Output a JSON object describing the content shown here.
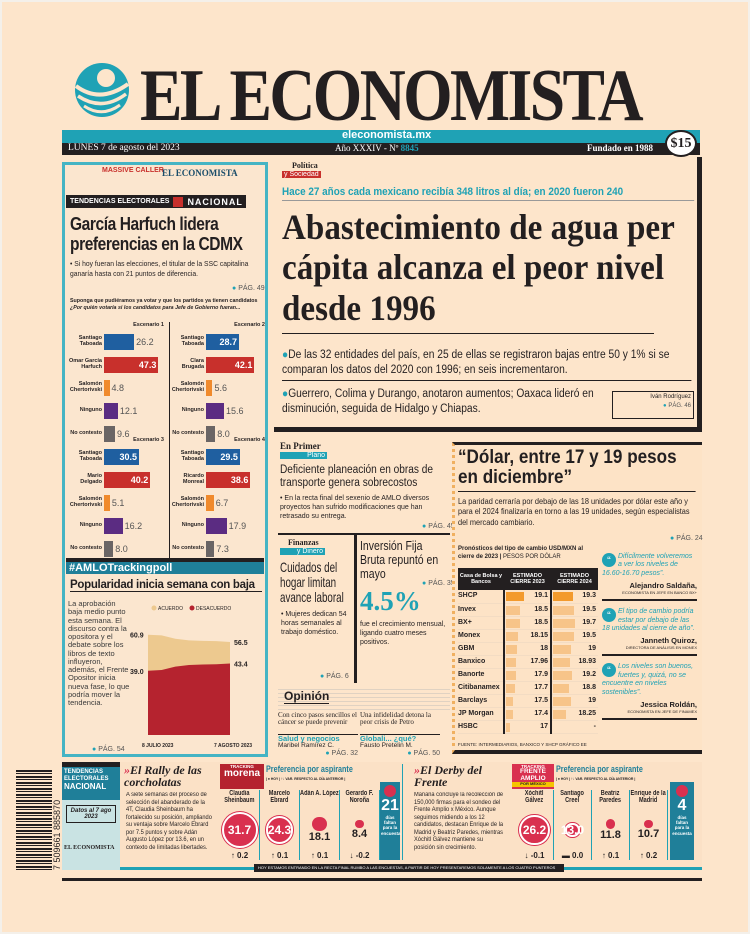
{
  "masthead": {
    "title": "EL ECONOMISTA",
    "website": "eleconomista.mx",
    "date": "LUNES 7 de agosto del 2023",
    "year": "Año XXXIV - Nº",
    "issue": "8845",
    "founded": "Fundado en 1988",
    "price": "$15"
  },
  "left": {
    "partner": "MASSIVE CALLER",
    "brand": "EL ECONOMISTA",
    "section": "TENDENCIAS ELECTORALES",
    "section_tag": "NACIONAL",
    "headline": "García Harfuch lidera preferencias en la CDMX",
    "bullet": "• Si hoy fueran las elecciones, el titular de la SSC capitalina ganaría hasta con 21 puntos de diferencia.",
    "page": "PÁG. 49",
    "question1": "Suponga que pudiéramos ya votar y que los partidos ya tienen candidatos",
    "question2": "¿Por quién votaría si los candidatos para Jefe de Gobierno fueran...",
    "scenarios": [
      {
        "title": "Escenario 1",
        "rows": [
          {
            "label": "Santiago Taboada",
            "value": 26.2,
            "color": "#1f5fa0"
          },
          {
            "label": "Omar García Harfuch",
            "value": 47.3,
            "color": "#c8302c"
          },
          {
            "label": "Salomón Chertorivski",
            "value": 4.8,
            "color": "#f08a2c"
          },
          {
            "label": "Ninguno",
            "value": 12.1,
            "color": "#5b2c82"
          },
          {
            "label": "No contesto",
            "value": 9.6,
            "color": "#6a6565"
          }
        ]
      },
      {
        "title": "Escenario 2",
        "rows": [
          {
            "label": "Santiago Taboada",
            "value": 28.7,
            "color": "#1f5fa0"
          },
          {
            "label": "Clara Brugada",
            "value": 42.1,
            "color": "#c8302c"
          },
          {
            "label": "Salomón Chertorivski",
            "value": 5.6,
            "color": "#f08a2c"
          },
          {
            "label": "Ninguno",
            "value": 15.6,
            "color": "#5b2c82"
          },
          {
            "label": "No contesto",
            "value": 8.0,
            "color": "#6a6565"
          }
        ]
      },
      {
        "title": "Escenario 3",
        "rows": [
          {
            "label": "Santiago Taboada",
            "value": 30.5,
            "color": "#1f5fa0"
          },
          {
            "label": "Mario Delgado",
            "value": 40.2,
            "color": "#c8302c"
          },
          {
            "label": "Salomón Chertorivski",
            "value": 5.1,
            "color": "#f08a2c"
          },
          {
            "label": "Ninguno",
            "value": 16.2,
            "color": "#5b2c82"
          },
          {
            "label": "No contesto",
            "value": 8.0,
            "color": "#6a6565"
          }
        ]
      },
      {
        "title": "Escenario 4",
        "rows": [
          {
            "label": "Santiago Taboada",
            "value": 29.5,
            "color": "#1f5fa0"
          },
          {
            "label": "Ricardo Monreal",
            "value": 38.6,
            "color": "#c8302c"
          },
          {
            "label": "Salomón Chertorivski",
            "value": 6.7,
            "color": "#f08a2c"
          },
          {
            "label": "Ninguno",
            "value": 17.9,
            "color": "#5b2c82"
          },
          {
            "label": "No contesto",
            "value": 7.3,
            "color": "#6a6565"
          }
        ]
      }
    ],
    "tracking": {
      "tag": "#AMLOTrackingpoll",
      "title": "Popularidad inicia semana con baja",
      "text": "La aprobación baja medio punto esta semana. El discurso contra la opositora y el debate sobre los libros de texto influyeron, además, el Frente Opositor inicia nueva fase, lo que podría mover la tendencia.",
      "page": "PÁG. 54"
    }
  },
  "chart_data": [
    {
      "type": "area",
      "title": "Popularidad inicia semana con baja",
      "legend": [
        "ACUERDO",
        "DESACUERDO"
      ],
      "xlabels": [
        "8 JULIO 2023",
        "7 AGOSTO 2023"
      ],
      "series": [
        {
          "name": "ACUERDO",
          "values": [
            60.9,
            60.5,
            58.5,
            57.5,
            57.2,
            57.0,
            56.5
          ]
        },
        {
          "name": "DESACUERDO",
          "values": [
            39.0,
            39.5,
            41.5,
            42.5,
            42.8,
            43.0,
            43.4
          ]
        }
      ],
      "labels": {
        "start_acuerdo": "60.9",
        "end_acuerdo": "56.5",
        "start_desacuerdo": "39.0",
        "end_desacuerdo": "43.4"
      },
      "ylim": [
        0,
        100
      ]
    },
    {
      "type": "table",
      "title": "Pronósticos del tipo de cambio USD/MXN al cierre de 2023",
      "unit": "PESOS POR DÓLAR",
      "columns": [
        "Casa de Bolsa y Bancos",
        "ESTIMADO CIERRE 2023",
        "ESTIMADO CIERRE 2024"
      ],
      "rows": [
        [
          "SHCP",
          "19.1",
          "19.3"
        ],
        [
          "Invex",
          "18.5",
          "19.5"
        ],
        [
          "BX+",
          "18.5",
          "19.7"
        ],
        [
          "Monex",
          "18.15",
          "19.5"
        ],
        [
          "GBM",
          "18",
          "19"
        ],
        [
          "Banxico",
          "17.96",
          "18.93"
        ],
        [
          "Banorte",
          "17.9",
          "19.2"
        ],
        [
          "Citibanamex",
          "17.7",
          "18.8"
        ],
        [
          "Barclays",
          "17.5",
          "19"
        ],
        [
          "JP Morgan",
          "17.4",
          "18.25"
        ],
        [
          "HSBC",
          "17",
          "-"
        ]
      ],
      "source": "FUENTE: INTERMEDIARIOS, BANXICO Y SHCP GRÁFICO EE"
    }
  ],
  "main": {
    "section": "Política",
    "section_sub": "y Sociedad",
    "kicker": "Hace 27 años cada mexicano recibía 348 litros al día; en 2020 fueron 240",
    "headline": "Abastecimiento de agua per cápita alcanza el peor nivel desde 1996",
    "bullet1": "De las 32 entidades del país, en 25 de ellas se registraron bajas entre 50 y 1% si se comparan los datos del 2020 con 1996; en seis incrementaron.",
    "bullet2": "Guerrero, Colima y Durango, anotaron aumentos; Oaxaca lideró en disminución, seguida de Hidalgo y Chiapas.",
    "author": "Iván Rodríguez",
    "page": "PÁG. 46"
  },
  "primer": {
    "section": "En Primer",
    "section_sub": "Plano",
    "headline": "Deficiente planeación en obras de transporte genera sobrecostos",
    "bullet": "• En la recta final del sexenio de AMLO diversos proyectos han sufrido modificaciones que han retrasado su entrega.",
    "page": "PÁG. 45"
  },
  "finanzas": {
    "section": "Finanzas",
    "section_sub": "y Dinero",
    "headline": "Cuidados del hogar limitan avance laboral",
    "bullet": "• Mujeres dedican 54 horas semanales al trabajo doméstico.",
    "page": "PÁG. 6"
  },
  "inversion": {
    "headline": "Inversión Fija Bruta repuntó en mayo",
    "page": "PÁG. 35",
    "figure": "4.5%",
    "text": "fue el crecimiento mensual, ligando cuatro meses positivos."
  },
  "opinion": {
    "title": "Opinión",
    "items": [
      {
        "title": "Con cinco pasos sencillos el cáncer se puede prevenir",
        "column": "Salud y negocios",
        "author": "Maribel Ramírez C.",
        "page": "PÁG. 32"
      },
      {
        "title": "Una infidelidad detona la peor crisis de Petro",
        "column": "Globali... ¿qué?",
        "author": "Fausto Pretelin M.",
        "page": "PÁG. 50"
      }
    ]
  },
  "dolar": {
    "headline": "“Dólar, entre 17 y 19 pesos en diciembre”",
    "text": "La paridad cerraría por debajo de las 18 unidades por dólar este año y para el 2024 finalizaría en torno a las 19 unidades, según especialistas del mercado cambiario.",
    "page": "PÁG. 24",
    "quotes": [
      {
        "text": "Difícilmente volveremos a ver los niveles de 16.60-16.70 pesos”.",
        "name": "Alejandro Saldaña,",
        "role": "ECONOMISTA EN JEFE EN BANCO BX+"
      },
      {
        "text": "El tipo de cambio podría estar por debajo de las 18 unidades al cierre de año”.",
        "name": "Janneth Quiroz,",
        "role": "DIRECTORA DE ANÁLISIS EN MONEX"
      },
      {
        "text": "Los niveles son buenos, fuertes y, quizá, no se encuentre en niveles sostenibles”.",
        "name": "Jessica Roldán,",
        "role": "ECONOMISTA EN JEFE DE FINAMEX"
      }
    ]
  },
  "bottom": {
    "barcode": "7 509661 885870",
    "box_title1": "TENDENCIAS ELECTORALES",
    "box_title2": "NACIONAL",
    "box_date": "Datos al 7 ago 2023",
    "box_brand": "EL ECONOMISTA",
    "legend": "| ● HOY | ↑↓ VAR. RESPECTO AL DÍA ANTERIOR |",
    "pref": "Preferencia por aspirante",
    "ticker": "HOY ESTAMOS ENTRANDO EN LA RECTA FINAL RUMBO A LAS ENCUESTAS, A PARTIR DE HOY PRESENTAREMOS SOLAMENTE A LOS CUATRO PUNTEROS",
    "rally": {
      "title": "El Rally de las corcholatas",
      "tag1": "TRACKING",
      "tag2": "morena",
      "text": "A siete semanas del proceso de selección del abanderado de la 4T, Claudia Sheinbaum ha fortalecido su posición, ampliando su ventaja sobre Marcelo Ebrard por 7.5 puntos y sobre Adán Augusto López por 13.6, en un contexto de limitadas libertades.",
      "days": "21",
      "days_label": "días faltan para la encuesta",
      "cands": [
        {
          "name": "Claudia Sheinbaum",
          "value": "31.7",
          "var": "↑ 0.2"
        },
        {
          "name": "Marcelo Ebrard",
          "value": "24.3",
          "var": "↑ 0.1"
        },
        {
          "name": "Adán A. López",
          "value": "18.1",
          "var": "↑ 0.1"
        },
        {
          "name": "Gerardo F. Noroña",
          "value": "8.4",
          "var": "↓ -0.2"
        }
      ]
    },
    "derby": {
      "title": "El Derby del Frente",
      "tag1": "TRACKING",
      "tag2": "FRENTE AMPLIO",
      "tag3": "POR MÉXICO",
      "text": "Mañana concluye la recolección de 150,000 firmas para el sondeo del Frente Amplio x México. Aunque seguimos midiendo a los 12 candidatos, destacan Enrique de la Madrid y Beatriz Paredes, mientras Xóchitl Gálvez mantiene su posición sin crecimiento.",
      "days": "4",
      "days_label": "días faltan para la encuesta",
      "cands": [
        {
          "name": "Xóchitl Gálvez",
          "value": "26.2",
          "var": "↓ -0.1"
        },
        {
          "name": "Santiago Creel",
          "value": "13.0",
          "var": "▬ 0.0"
        },
        {
          "name": "Beatriz Paredes",
          "value": "11.8",
          "var": "↑ 0.1"
        },
        {
          "name": "Enrique de la Madrid",
          "value": "10.7",
          "var": "↑ 0.2"
        }
      ]
    }
  },
  "colors": {
    "teal": "#1fa2b5",
    "dark": "#231f20",
    "red": "#c8302c",
    "pink": "#d9304f",
    "bg": "#fde5cb"
  }
}
